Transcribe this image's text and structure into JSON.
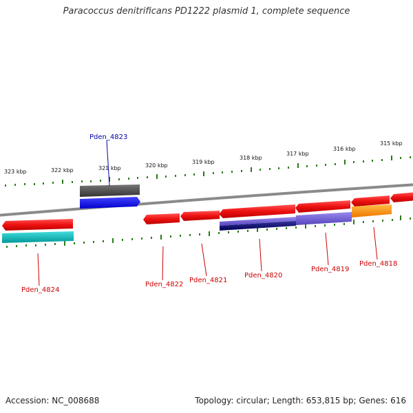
{
  "title": "Paracoccus denitrificans PD1222 plasmid 1, complete sequence",
  "footer": {
    "accession": "Accession: NC_008688",
    "summary": "Topology: circular; Length: 653,815 bp; Genes: 616"
  },
  "colors": {
    "backbone": "#8a8a8a",
    "tick": "#2a7a1a",
    "label_red": "#cc0000",
    "label_blue": "#0000aa",
    "gene_red": "#ee1111",
    "gene_blue": "#1a1aee",
    "gene_gray": "#555555",
    "cog_cyan": "#11bbbb",
    "cog_purple": "#7766dd",
    "cog_navy": "#111177",
    "cog_orange": "#ff9911"
  },
  "scale_labels": [
    "323 kbp",
    "322 kbp",
    "321 kbp",
    "320 kbp",
    "319 kbp",
    "318 kbp",
    "317 kbp",
    "316 kbp",
    "315 kbp"
  ],
  "gene_labels": [
    "Pden_4823",
    "Pden_4824",
    "Pden_4822",
    "Pden_4821",
    "Pden_4820",
    "Pden_4819",
    "Pden_4818"
  ]
}
